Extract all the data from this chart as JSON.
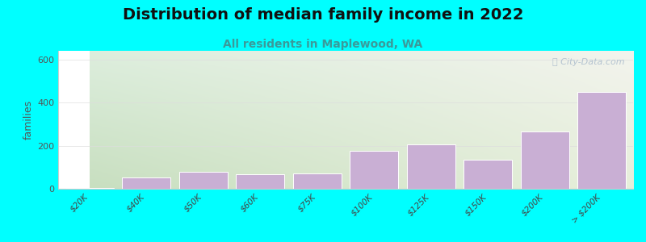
{
  "title": "Distribution of median family income in 2022",
  "subtitle": "All residents in Maplewood, WA",
  "categories": [
    "$20K",
    "$40K",
    "$50K",
    "$60K",
    "$75K",
    "$100K",
    "$125K",
    "$150K",
    "$200K",
    "> $200K"
  ],
  "values": [
    5,
    52,
    78,
    68,
    72,
    175,
    205,
    135,
    265,
    450
  ],
  "bar_color": "#c9afd4",
  "bar_edge_color": "#ffffff",
  "title_fontsize": 14,
  "subtitle_fontsize": 10,
  "subtitle_color": "#3a9a9a",
  "ylabel": "families",
  "ylabel_fontsize": 9,
  "yticks": [
    0,
    200,
    400,
    600
  ],
  "ylim": [
    0,
    640
  ],
  "background_color": "#00ffff",
  "watermark": "⌕ City-Data.com",
  "watermark_color": "#aabbcc",
  "grid_color": "#dddddd"
}
